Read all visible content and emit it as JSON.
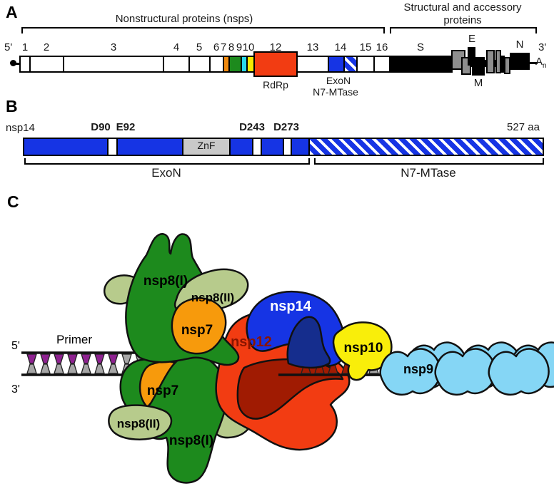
{
  "panels": {
    "a": "A",
    "b": "B",
    "c": "C"
  },
  "panelA": {
    "bracket_nsps": "Nonstructural proteins (nsps)",
    "bracket_structural_line1": "Structural and accessory",
    "bracket_structural_line2": "proteins",
    "five_prime": "5'",
    "three_prime": "3'",
    "poly_a": "A",
    "poly_a_sub": "n",
    "nsp_numbers": [
      "1",
      "2",
      "3",
      "4",
      "5",
      "6",
      "7",
      "8",
      "9",
      "10",
      "12",
      "13",
      "14",
      "15",
      "16"
    ],
    "rdrp_label": "RdRp",
    "exon_label": "ExoN",
    "n7_label": "N7-MTase",
    "structural_labels": {
      "s": "S",
      "e": "E",
      "m": "M",
      "n": "N"
    }
  },
  "panelB": {
    "protein": "nsp14",
    "residues": [
      "D90",
      "E92",
      "D243",
      "D273"
    ],
    "length": "527 aa",
    "znf": "ZnF",
    "exon_bracket": "ExoN",
    "n7_bracket": "N7-MTase"
  },
  "panelC": {
    "five_prime": "5'",
    "three_prime": "3'",
    "primer": "Primer",
    "labels": {
      "nsp8I_top": "nsp8(I)",
      "nsp8II_top": "nsp8(II)",
      "nsp7_top": "nsp7",
      "nsp12": "nsp12",
      "nsp14": "nsp14",
      "nsp10": "nsp10",
      "nsp9": "nsp9",
      "nsp7_bottom": "nsp7",
      "nsp8II_bottom": "nsp8(II)",
      "nsp8I_bottom": "nsp8(I)"
    }
  },
  "colors": {
    "white": "#ffffff",
    "black": "#000000",
    "blue": "#1634e4",
    "navy": "#152d8d",
    "red": "#f23c12",
    "dark_red": "#a01b02",
    "orange_box": "#f18a10",
    "orange_blob": "#f79a0c",
    "green": "#1d8a1d",
    "light_green": "#b7cb8c",
    "cyan_box": "#29d8ea",
    "yellow_box": "#f6e900",
    "yellow_blob": "#f9ee0a",
    "light_blue": "#85d6f5",
    "purple": "#8e2290",
    "tooth_gray": "#a6a6a6",
    "znf_gray": "#c9c9c9",
    "struct_gray": "#8e8e8e"
  }
}
